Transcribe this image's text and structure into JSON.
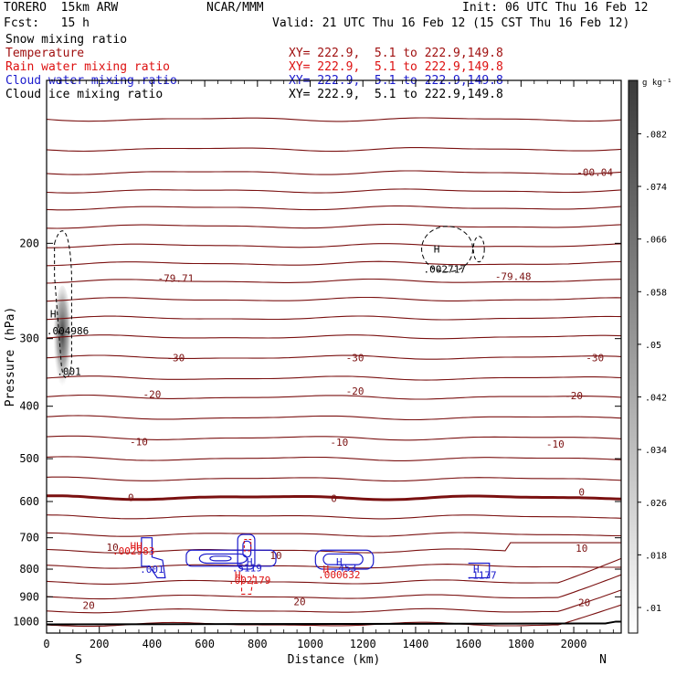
{
  "header": {
    "model": "TORERO  15km ARW",
    "org": "NCAR/MMM",
    "init": "Init: 06 UTC Thu 16 Feb 12",
    "fcst": "Fcst:   15 h",
    "valid": "Valid: 21 UTC Thu 16 Feb 12 (15 CST Thu 16 Feb 12)"
  },
  "legend": [
    {
      "name": "Snow mixing ratio",
      "xy": "",
      "color": "#000000"
    },
    {
      "name": "Temperature",
      "xy": "XY= 222.9,  5.1 to 222.9,149.8",
      "color": "#a01010"
    },
    {
      "name": "Rain water mixing ratio",
      "xy": "XY= 222.9,  5.1 to 222.9,149.8",
      "color": "#dd1111"
    },
    {
      "name": "Cloud water mixing ratio",
      "xy": "XY= 222.9,  5.1 to 222.9,149.8",
      "color": "#1a1acc"
    },
    {
      "name": "Cloud ice mixing ratio",
      "xy": "XY= 222.9,  5.1 to 222.9,149.8",
      "color": "#000000"
    }
  ],
  "colors": {
    "temperature": "#7a1010",
    "rain": "#dd1111",
    "cloud_water": "#1a1acc",
    "cloud_ice": "#000000",
    "ground": "#000000"
  },
  "chart_data": {
    "type": "contour",
    "xlabel": "Distance (km)",
    "ylabel": "Pressure (hPa)",
    "xlim": [
      0,
      2180
    ],
    "ylim": [
      1050,
      100
    ],
    "x_ticks": [
      0,
      200,
      400,
      600,
      800,
      1000,
      1200,
      1400,
      1600,
      1800,
      2000
    ],
    "y_ticks": [
      200,
      300,
      400,
      500,
      600,
      700,
      800,
      900,
      1000
    ],
    "y_scale": "log",
    "axis_end_labels": {
      "left": "S",
      "right": "N"
    },
    "colorbar": {
      "unit": "g kg⁻¹",
      "ticks": [
        ".01",
        ".018",
        ".026",
        ".034",
        ".042",
        ".05",
        ".058",
        ".066",
        ".074",
        ".082"
      ]
    },
    "temperature_contour_labels": [
      {
        "x": 490,
        "p": 232,
        "text": "-79.71"
      },
      {
        "x": 1770,
        "p": 230,
        "text": "-79.48"
      },
      {
        "x": 490,
        "p": 325,
        "text": "-30"
      },
      {
        "x": 1170,
        "p": 325,
        "text": "-30"
      },
      {
        "x": 2080,
        "p": 325,
        "text": "-30"
      },
      {
        "x": 400,
        "p": 380,
        "text": "-20"
      },
      {
        "x": 1170,
        "p": 375,
        "text": "-20"
      },
      {
        "x": 2000,
        "p": 382,
        "text": "-20"
      },
      {
        "x": 350,
        "p": 465,
        "text": "-10"
      },
      {
        "x": 1110,
        "p": 466,
        "text": "-10"
      },
      {
        "x": 1930,
        "p": 470,
        "text": "-10"
      },
      {
        "x": 320,
        "p": 590,
        "text": "0"
      },
      {
        "x": 1090,
        "p": 592,
        "text": "0"
      },
      {
        "x": 2030,
        "p": 576,
        "text": "0"
      },
      {
        "x": 250,
        "p": 729,
        "text": "10"
      },
      {
        "x": 870,
        "p": 755,
        "text": "10"
      },
      {
        "x": 2030,
        "p": 731,
        "text": "10"
      },
      {
        "x": 160,
        "p": 933,
        "text": "20"
      },
      {
        "x": 960,
        "p": 918,
        "text": "20"
      },
      {
        "x": 2040,
        "p": 921,
        "text": "20"
      }
    ],
    "extrema_labels": [
      {
        "x": 25,
        "p": 270,
        "text": "H",
        "field": "snow"
      },
      {
        "x": 80,
        "p": 290,
        "text": ".004986",
        "field": "snow"
      },
      {
        "x": 85,
        "p": 345,
        "text": ".001",
        "field": "snow"
      },
      {
        "x": 1480,
        "p": 205,
        "text": "H",
        "field": "cloud_ice"
      },
      {
        "x": 1510,
        "p": 223,
        "text": ".002717",
        "field": "cloud_ice"
      },
      {
        "x": 340,
        "p": 725,
        "text": "HH",
        "field": "rain"
      },
      {
        "x": 330,
        "p": 740,
        "text": ".002983",
        "field": "rain"
      },
      {
        "x": 400,
        "p": 800,
        "text": ".001",
        "field": "cloud_water"
      },
      {
        "x": 770,
        "p": 775,
        "text": "H",
        "field": "cloud_water"
      },
      {
        "x": 760,
        "p": 795,
        "text": ".5119",
        "field": "cloud_water"
      },
      {
        "x": 725,
        "p": 820,
        "text": "H",
        "field": "rain"
      },
      {
        "x": 770,
        "p": 838,
        "text": ".002179",
        "field": "rain"
      },
      {
        "x": 1110,
        "p": 775,
        "text": "H",
        "field": "cloud_water"
      },
      {
        "x": 1130,
        "p": 795,
        "text": ".453",
        "field": "cloud_water"
      },
      {
        "x": 1060,
        "p": 800,
        "text": "H",
        "field": "rain"
      },
      {
        "x": 1110,
        "p": 818,
        "text": ".000632",
        "field": "rain"
      },
      {
        "x": 1630,
        "p": 800,
        "text": "H",
        "field": "cloud_water"
      },
      {
        "x": 1650,
        "p": 820,
        "text": ".1177",
        "field": "cloud_water"
      }
    ],
    "corner_note": "-00.04"
  }
}
